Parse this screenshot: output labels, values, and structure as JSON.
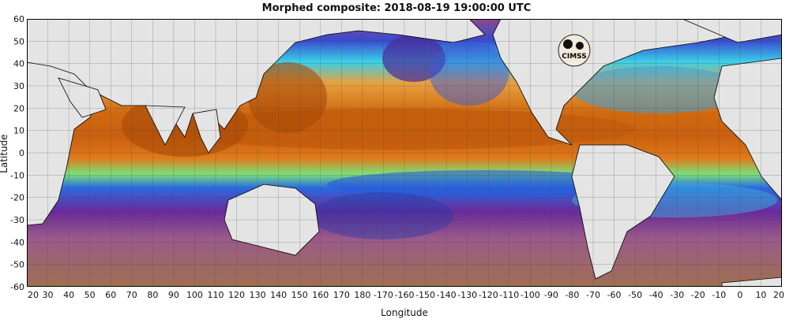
{
  "title": "Morphed composite: 2018-08-19 19:00:00 UTC",
  "xlabel": "Longitude",
  "ylabel": "Latitude",
  "logo_text": "CIMSS",
  "x_ticks": [
    "20",
    "30",
    "40",
    "50",
    "60",
    "70",
    "80",
    "90",
    "100",
    "110",
    "120",
    "130",
    "140",
    "150",
    "160",
    "170",
    "180",
    "-170",
    "-160",
    "-150",
    "-140",
    "-130",
    "-120",
    "-110",
    "-100",
    "-90",
    "-80",
    "-70",
    "-60",
    "-50",
    "-40",
    "-30",
    "-20",
    "-10",
    "0",
    "10",
    "20"
  ],
  "y_ticks": [
    "60",
    "50",
    "40",
    "30",
    "20",
    "10",
    "0",
    "-10",
    "-20",
    "-30",
    "-40",
    "-50",
    "-60"
  ],
  "colors": {
    "land": "#e4e4e4",
    "dry": "#9a6a5a",
    "purple": "#7a2a8a",
    "blue": "#2a5ad8",
    "cyan": "#3ad0e8",
    "green": "#7ae07a",
    "yellow": "#f0d060",
    "orange": "#e07a1a",
    "brown": "#8a3a0a"
  }
}
